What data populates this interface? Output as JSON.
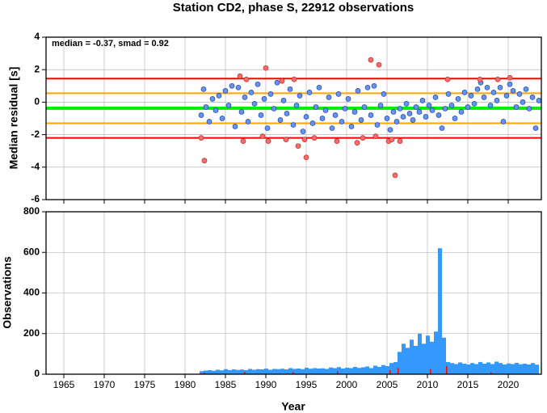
{
  "chart_data": [
    {
      "type": "scatter",
      "title": "Station CD2, phase S, 22912 observations",
      "ylabel": "Median residual [s]",
      "annotation": "median = -0.37, smad = 0.92",
      "xlim": [
        1962.8,
        2024.1
      ],
      "ylim": [
        -6,
        4
      ],
      "yticks": [
        -6,
        -4,
        -2,
        0,
        2,
        4
      ],
      "grid": true,
      "hlines": [
        {
          "value": 1.45,
          "color": "#ff0000"
        },
        {
          "value": 0.55,
          "color": "#ffa500"
        },
        {
          "value": -0.37,
          "color": "#00ee00"
        },
        {
          "value": -1.3,
          "color": "#ffa500"
        },
        {
          "value": -2.2,
          "color": "#ff0000"
        }
      ],
      "series": [
        {
          "color": "#6495ed",
          "x": [
            1982.0,
            1982.3,
            1982.6,
            1983.0,
            1983.4,
            1983.8,
            1984.2,
            1984.6,
            1985.0,
            1985.4,
            1985.8,
            1986.2,
            1986.6,
            1987.0,
            1987.4,
            1987.8,
            1988.2,
            1988.6,
            1989.0,
            1989.4,
            1989.8,
            1990.2,
            1990.6,
            1991.0,
            1991.4,
            1991.8,
            1992.2,
            1992.6,
            1993.0,
            1993.4,
            1993.8,
            1994.2,
            1994.6,
            1995.0,
            1995.4,
            1995.8,
            1996.2,
            1996.6,
            1997.0,
            1997.4,
            1997.8,
            1998.2,
            1998.6,
            1999.0,
            1999.4,
            1999.8,
            2000.2,
            2000.6,
            2001.0,
            2001.4,
            2001.8,
            2002.2,
            2002.6,
            2003.0,
            2003.4,
            2003.8,
            2004.2,
            2004.6,
            2005.0,
            2005.4,
            2005.8,
            2006.2,
            2006.6,
            2007.0,
            2007.4,
            2007.8,
            2008.2,
            2008.6,
            2009.0,
            2009.4,
            2009.8,
            2010.2,
            2010.6,
            2011.0,
            2011.4,
            2011.8,
            2012.2,
            2012.6,
            2013.0,
            2013.4,
            2013.8,
            2014.2,
            2014.6,
            2015.0,
            2015.4,
            2015.8,
            2016.2,
            2016.6,
            2017.0,
            2017.4,
            2017.8,
            2018.2,
            2018.6,
            2019.0,
            2019.4,
            2019.8,
            2020.2,
            2020.6,
            2021.0,
            2021.4,
            2021.8,
            2022.2,
            2022.6,
            2023.0,
            2023.4,
            2023.8
          ],
          "values": [
            -0.8,
            0.8,
            -0.3,
            -1.2,
            0.2,
            -0.5,
            0.4,
            -1.0,
            0.7,
            -0.2,
            1.0,
            -1.5,
            0.9,
            -0.6,
            0.3,
            -1.2,
            0.6,
            -0.1,
            1.1,
            -0.8,
            0.2,
            -1.6,
            0.5,
            -0.4,
            1.2,
            -1.1,
            0.1,
            -0.7,
            0.8,
            -1.4,
            -0.2,
            0.4,
            -1.8,
            -0.9,
            0.6,
            -1.3,
            -0.3,
            0.9,
            -1.0,
            -0.5,
            0.3,
            -1.6,
            -0.8,
            0.5,
            -1.2,
            -0.4,
            0.2,
            -1.5,
            -0.6,
            0.7,
            -1.1,
            -0.3,
            0.9,
            -0.8,
            1.0,
            -1.4,
            -0.2,
            0.5,
            -1.0,
            -1.7,
            -0.6,
            -1.2,
            -0.4,
            -0.9,
            -0.1,
            -0.7,
            -1.1,
            -0.3,
            -0.6,
            0.1,
            -0.9,
            -0.2,
            -0.5,
            0.3,
            -0.8,
            -1.6,
            -0.4,
            0.5,
            -0.2,
            -1.0,
            0.2,
            -0.6,
            0.6,
            -0.3,
            0.4,
            -0.1,
            0.8,
            1.2,
            0.3,
            0.9,
            -0.2,
            0.6,
            0.1,
            0.9,
            -1.2,
            0.4,
            1.1,
            0.7,
            -0.3,
            0.5,
            0.0,
            0.8,
            -0.4,
            0.3,
            -1.6,
            0.1
          ]
        },
        {
          "color": "#ff6a6a",
          "x": [
            1982.0,
            1982.4,
            1986.8,
            1987.2,
            1987.6,
            1989.6,
            1990.0,
            1990.3,
            1992.0,
            1992.5,
            1993.5,
            1994.0,
            1994.8,
            1995.0,
            1996.0,
            1998.8,
            2001.3,
            2002.0,
            2003.0,
            2003.6,
            2004.0,
            2005.2,
            2005.6,
            2006.0,
            2006.6,
            2012.5,
            2016.5,
            2018.7,
            2020.2
          ],
          "values": [
            -2.2,
            -3.6,
            1.6,
            -2.4,
            1.4,
            -2.1,
            2.1,
            -2.4,
            1.3,
            -2.3,
            1.4,
            -2.7,
            -2.3,
            -3.4,
            -2.2,
            -2.4,
            -2.5,
            -2.2,
            2.6,
            -2.1,
            2.3,
            -2.4,
            -2.3,
            -4.5,
            -2.4,
            1.4,
            1.4,
            1.4,
            1.5
          ]
        }
      ]
    },
    {
      "type": "bar",
      "ylabel": "Observations",
      "xlabel": "Year",
      "xlim": [
        1962.8,
        2024.1
      ],
      "xticks": [
        1965,
        1970,
        1975,
        1980,
        1985,
        1990,
        1995,
        2000,
        2005,
        2010,
        2015,
        2020
      ],
      "ylim": [
        0,
        800
      ],
      "yticks": [
        0,
        200,
        400,
        600,
        800
      ],
      "grid": true,
      "series": [
        {
          "color": "#3399ff",
          "x": [
            1982,
            1982.5,
            1983,
            1983.5,
            1984,
            1984.5,
            1985,
            1985.5,
            1986,
            1986.5,
            1987,
            1987.5,
            1988,
            1988.5,
            1989,
            1989.5,
            1990,
            1990.5,
            1991,
            1991.5,
            1992,
            1992.5,
            1993,
            1993.5,
            1994,
            1994.5,
            1995,
            1995.5,
            1996,
            1996.5,
            1997,
            1997.5,
            1998,
            1998.5,
            1999,
            1999.5,
            2000,
            2000.5,
            2001,
            2001.5,
            2002,
            2002.5,
            2003,
            2003.5,
            2004,
            2004.5,
            2005,
            2005.5,
            2006,
            2006.5,
            2007,
            2007.5,
            2008,
            2008.5,
            2009,
            2009.5,
            2010,
            2010.5,
            2011,
            2011.5,
            2012,
            2012.5,
            2013,
            2013.5,
            2014,
            2014.5,
            2015,
            2015.5,
            2016,
            2016.5,
            2017,
            2017.5,
            2018,
            2018.5,
            2019,
            2019.5,
            2020,
            2020.5,
            2021,
            2021.5,
            2022,
            2022.5,
            2023,
            2023.5
          ],
          "values": [
            15,
            18,
            20,
            17,
            22,
            19,
            25,
            20,
            24,
            21,
            23,
            20,
            26,
            22,
            25,
            24,
            28,
            22,
            26,
            25,
            27,
            24,
            30,
            26,
            28,
            25,
            32,
            27,
            30,
            28,
            29,
            26,
            33,
            30,
            35,
            28,
            32,
            30,
            36,
            31,
            34,
            38,
            30,
            42,
            36,
            45,
            40,
            55,
            60,
            110,
            150,
            130,
            170,
            140,
            200,
            150,
            190,
            160,
            210,
            620,
            180,
            60,
            55,
            50,
            58,
            52,
            48,
            55,
            50,
            60,
            52,
            58,
            50,
            62,
            55,
            48,
            53,
            50,
            56,
            49,
            52,
            48,
            55,
            47
          ]
        },
        {
          "color": "#ff0000",
          "x": [
            1982.5,
            1987.5,
            1993.5,
            1999,
            2005.5,
            2006.5,
            2010.5,
            2012.5,
            2018
          ],
          "values": [
            8,
            12,
            10,
            15,
            20,
            30,
            25,
            40,
            10
          ]
        }
      ]
    }
  ]
}
